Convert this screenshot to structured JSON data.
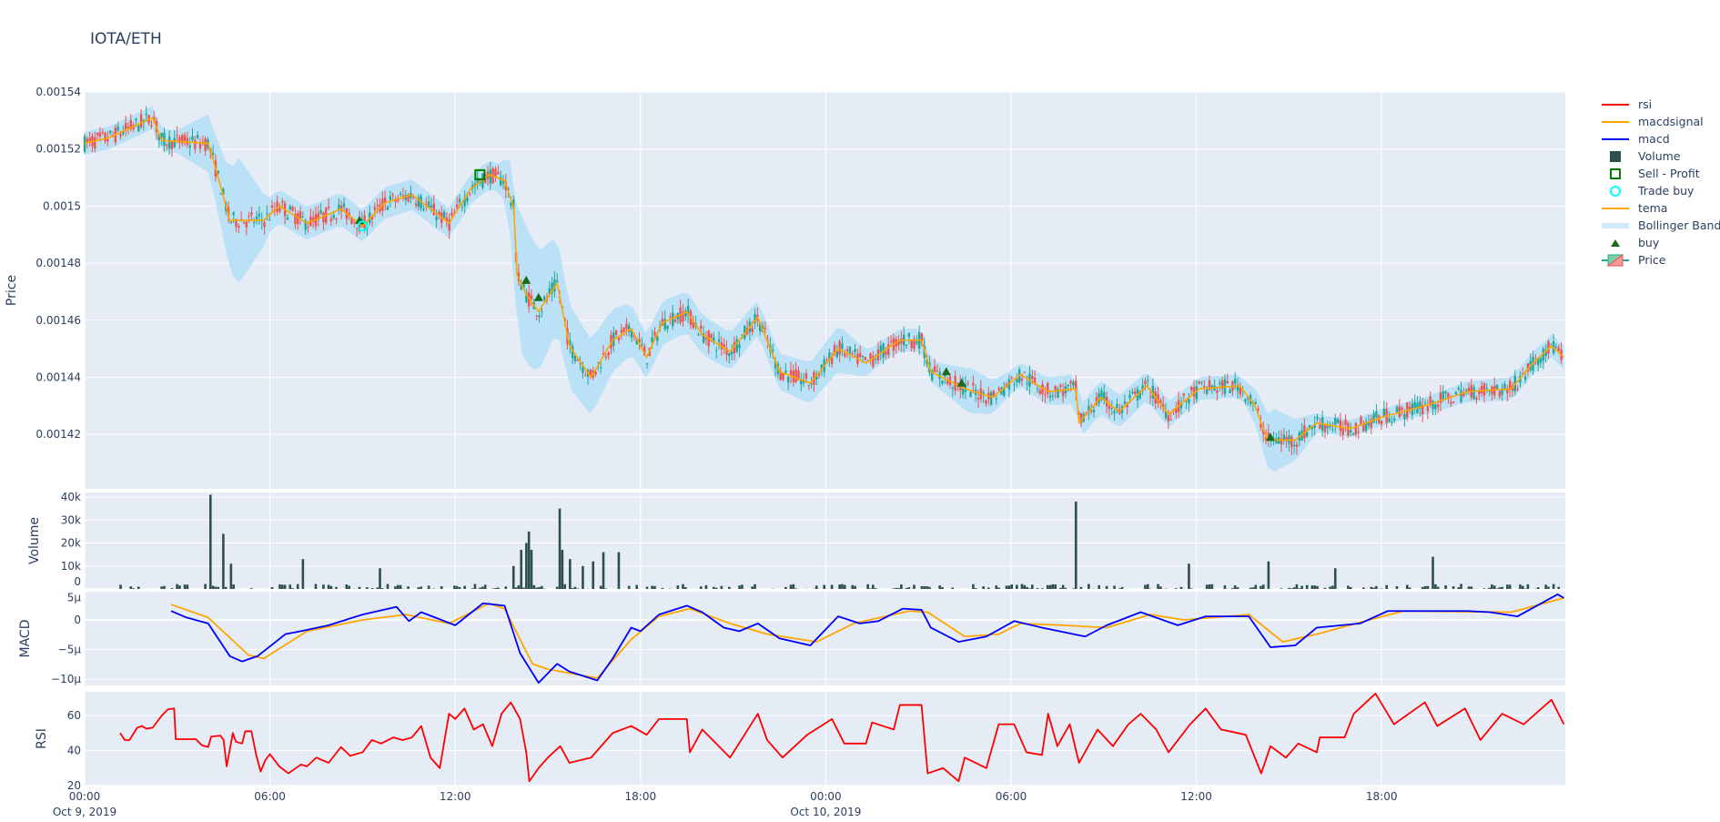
{
  "title": "IOTA/ETH",
  "colors": {
    "bg": "#E5ECF6",
    "grid": "#ffffff",
    "rsi": "#ff0000",
    "macdsignal": "#ffa500",
    "macd": "#0000ff",
    "volume": "#2f4f4f",
    "sell": "#008000",
    "tradebuy": "#00ffff",
    "tema": "#ffa500",
    "bb": "#b8e0f7",
    "buy": "#1a6b1a",
    "inc": "#26a69a",
    "dec": "#ef5350"
  },
  "legend": [
    "rsi",
    "macdsignal",
    "macd",
    "Volume",
    "Sell - Profit",
    "Trade buy",
    "tema",
    "Bollinger Band",
    "buy",
    "Price"
  ],
  "chart_data": [
    {
      "type": "candlestick",
      "ylabel": "Price",
      "ylim": [
        0.001401,
        0.00154
      ],
      "yticks": [
        "0.00154",
        "0.00152",
        "0.0015",
        "0.00148",
        "0.00146",
        "0.00144",
        "0.00142"
      ],
      "ytick_values": [
        0.00154,
        0.00152,
        0.0015,
        0.00148,
        0.00146,
        0.00144,
        0.00142
      ],
      "x_unit": "hours since Oct 9, 2019 00:00",
      "tema": [
        [
          0,
          0.001522
        ],
        [
          0.8,
          0.001524
        ],
        [
          2.2,
          0.001531
        ],
        [
          2.5,
          0.001523
        ],
        [
          4.0,
          0.001522
        ],
        [
          4.3,
          0.001511
        ],
        [
          4.7,
          0.001495
        ],
        [
          5.8,
          0.001495
        ],
        [
          6.3,
          0.0015
        ],
        [
          7.2,
          0.001494
        ],
        [
          8.3,
          0.001499
        ],
        [
          9.0,
          0.001493
        ],
        [
          9.7,
          0.001501
        ],
        [
          10.6,
          0.001504
        ],
        [
          11.8,
          0.001494
        ],
        [
          12.5,
          0.001506
        ],
        [
          13.1,
          0.001511
        ],
        [
          13.6,
          0.001509
        ],
        [
          13.9,
          0.001499
        ],
        [
          14.0,
          0.001476
        ],
        [
          14.3,
          0.001469
        ],
        [
          14.7,
          0.001463
        ],
        [
          15.3,
          0.001473
        ],
        [
          15.7,
          0.001451
        ],
        [
          16.4,
          0.00144
        ],
        [
          17.1,
          0.001453
        ],
        [
          17.7,
          0.001457
        ],
        [
          18.2,
          0.001447
        ],
        [
          18.7,
          0.001459
        ],
        [
          19.5,
          0.001463
        ],
        [
          20.0,
          0.001455
        ],
        [
          20.9,
          0.001449
        ],
        [
          21.8,
          0.001461
        ],
        [
          22.5,
          0.001442
        ],
        [
          23.5,
          0.001438
        ],
        [
          24.4,
          0.00145
        ],
        [
          25.3,
          0.001445
        ],
        [
          26.4,
          0.001453
        ],
        [
          27.1,
          0.001453
        ],
        [
          27.4,
          0.001442
        ],
        [
          28.5,
          0.001436
        ],
        [
          29.4,
          0.001433
        ],
        [
          30.3,
          0.001441
        ],
        [
          31.2,
          0.001435
        ],
        [
          32.1,
          0.001436
        ],
        [
          32.2,
          0.001424
        ],
        [
          32.9,
          0.001433
        ],
        [
          33.5,
          0.001428
        ],
        [
          34.4,
          0.001437
        ],
        [
          35.1,
          0.001427
        ],
        [
          36.1,
          0.001436
        ],
        [
          37.4,
          0.001437
        ],
        [
          37.9,
          0.00143
        ],
        [
          38.3,
          0.001418
        ],
        [
          39.2,
          0.001418
        ],
        [
          39.9,
          0.001424
        ],
        [
          41.0,
          0.001422
        ],
        [
          42.0,
          0.001426
        ],
        [
          43.4,
          0.00143
        ],
        [
          44.8,
          0.001435
        ],
        [
          46.2,
          0.001436
        ],
        [
          46.9,
          0.001445
        ],
        [
          47.5,
          0.001451
        ],
        [
          47.9,
          0.001447
        ]
      ],
      "bb_halfwidth": [
        [
          0,
          4e-06
        ],
        [
          3,
          4e-06
        ],
        [
          4.3,
          1.2e-05
        ],
        [
          5.0,
          2.2e-05
        ],
        [
          6.0,
          6e-06
        ],
        [
          13.5,
          5e-06
        ],
        [
          14.2,
          2.5e-05
        ],
        [
          15.5,
          1.5e-05
        ],
        [
          16.5,
          1.3e-05
        ],
        [
          18,
          8e-06
        ],
        [
          22,
          6e-06
        ],
        [
          24.5,
          8e-06
        ],
        [
          25.5,
          4e-06
        ],
        [
          27.5,
          4e-06
        ],
        [
          28.7,
          8e-06
        ],
        [
          30,
          4e-06
        ],
        [
          33,
          6e-06
        ],
        [
          36,
          4e-06
        ],
        [
          37.6,
          4e-06
        ],
        [
          38.5,
          1.1e-05
        ],
        [
          40,
          3e-06
        ],
        [
          43,
          3e-06
        ],
        [
          46,
          4e-06
        ],
        [
          47.9,
          4e-06
        ]
      ],
      "buy": [
        [
          8.9,
          0.001495
        ],
        [
          14.3,
          0.001474
        ],
        [
          14.7,
          0.001468
        ],
        [
          27.9,
          0.001442
        ],
        [
          28.4,
          0.001438
        ],
        [
          38.4,
          0.001419
        ]
      ],
      "trade_buy": [
        [
          9.0,
          0.001493
        ]
      ],
      "sell_profit": [
        [
          12.8,
          0.001511
        ]
      ]
    },
    {
      "type": "bar",
      "ylabel": "Volume",
      "yticks": [
        "40k",
        "30k",
        "20k",
        "10k",
        "0"
      ],
      "ytick_values": [
        40000,
        30000,
        20000,
        10000,
        0
      ],
      "ylim": [
        0,
        41000
      ],
      "spikes": [
        [
          4.1,
          41000
        ],
        [
          4.5,
          24000
        ],
        [
          4.7,
          11000
        ],
        [
          7.1,
          13000
        ],
        [
          9.6,
          9000
        ],
        [
          13.9,
          10000
        ],
        [
          14.1,
          17000
        ],
        [
          14.3,
          20000
        ],
        [
          14.4,
          25000
        ],
        [
          14.5,
          17000
        ],
        [
          15.4,
          35000
        ],
        [
          15.5,
          17000
        ],
        [
          15.7,
          13000
        ],
        [
          16.1,
          10000
        ],
        [
          16.5,
          12000
        ],
        [
          16.8,
          16000
        ],
        [
          17.3,
          16000
        ],
        [
          32.1,
          38000
        ],
        [
          35.8,
          11000
        ],
        [
          38.3,
          12000
        ],
        [
          40.5,
          9000
        ],
        [
          43.7,
          14000
        ]
      ]
    },
    {
      "type": "line",
      "ylabel": "MACD",
      "yticks": [
        "5μ",
        "0",
        "−5μ",
        "−10μ"
      ],
      "ytick_values": [
        5,
        0,
        -5,
        -10
      ],
      "y_unit": "μ",
      "macd": [
        [
          2.8,
          1.5
        ],
        [
          3.3,
          0.4
        ],
        [
          4.0,
          -0.6
        ],
        [
          4.7,
          -6.1
        ],
        [
          5.1,
          -7
        ],
        [
          5.6,
          -6.1
        ],
        [
          6.5,
          -2.4
        ],
        [
          7.0,
          -1.9
        ],
        [
          7.9,
          -0.9
        ],
        [
          9.0,
          0.9
        ],
        [
          10.1,
          2.2
        ],
        [
          10.5,
          -0.2
        ],
        [
          10.9,
          1.3
        ],
        [
          12.0,
          -0.9
        ],
        [
          12.9,
          2.8
        ],
        [
          13.6,
          2.4
        ],
        [
          14.1,
          -5.6
        ],
        [
          14.7,
          -10.6
        ],
        [
          15.3,
          -7.4
        ],
        [
          15.7,
          -8.7
        ],
        [
          16.6,
          -10.2
        ],
        [
          17.1,
          -6.5
        ],
        [
          17.7,
          -1.3
        ],
        [
          18.0,
          -1.9
        ],
        [
          18.6,
          0.9
        ],
        [
          19.5,
          2.4
        ],
        [
          20.0,
          1.3
        ],
        [
          20.7,
          -1.3
        ],
        [
          21.2,
          -1.9
        ],
        [
          21.8,
          -0.6
        ],
        [
          22.5,
          -3.1
        ],
        [
          23.5,
          -4.3
        ],
        [
          24.4,
          0.6
        ],
        [
          25.1,
          -0.6
        ],
        [
          25.7,
          -0.2
        ],
        [
          26.5,
          1.9
        ],
        [
          27.1,
          1.7
        ],
        [
          27.4,
          -1.3
        ],
        [
          28.3,
          -3.7
        ],
        [
          29.2,
          -2.8
        ],
        [
          30.1,
          -0.2
        ],
        [
          31.0,
          -1.3
        ],
        [
          32.4,
          -2.8
        ],
        [
          33.1,
          -0.9
        ],
        [
          34.2,
          1.3
        ],
        [
          35.4,
          -0.9
        ],
        [
          36.3,
          0.6
        ],
        [
          37.7,
          0.6
        ],
        [
          38.4,
          -4.6
        ],
        [
          39.2,
          -4.3
        ],
        [
          39.9,
          -1.3
        ],
        [
          41.3,
          -0.6
        ],
        [
          42.2,
          1.5
        ],
        [
          43.4,
          1.5
        ],
        [
          44.8,
          1.5
        ],
        [
          45.5,
          1.3
        ],
        [
          46.4,
          0.6
        ],
        [
          47.7,
          4.3
        ],
        [
          47.9,
          3.7
        ]
      ],
      "macdsignal": [
        [
          2.8,
          2.6
        ],
        [
          4.0,
          0.4
        ],
        [
          5.3,
          -5.9
        ],
        [
          5.8,
          -6.5
        ],
        [
          7.2,
          -1.9
        ],
        [
          9.0,
          0
        ],
        [
          10.4,
          0.9
        ],
        [
          11.8,
          -0.6
        ],
        [
          13.1,
          2.8
        ],
        [
          13.6,
          1.9
        ],
        [
          14.5,
          -7.4
        ],
        [
          15.0,
          -8.3
        ],
        [
          16.6,
          -9.8
        ],
        [
          17.7,
          -3.3
        ],
        [
          18.6,
          0.6
        ],
        [
          19.6,
          1.9
        ],
        [
          20.9,
          -0.6
        ],
        [
          22.1,
          -2.4
        ],
        [
          23.7,
          -3.7
        ],
        [
          24.9,
          -0.6
        ],
        [
          26.7,
          1.5
        ],
        [
          27.3,
          1.3
        ],
        [
          28.5,
          -2.8
        ],
        [
          29.6,
          -2.4
        ],
        [
          30.3,
          -0.6
        ],
        [
          31.7,
          -0.9
        ],
        [
          33.1,
          -1.3
        ],
        [
          34.5,
          0.9
        ],
        [
          35.6,
          0
        ],
        [
          37.7,
          0.9
        ],
        [
          38.8,
          -3.7
        ],
        [
          39.9,
          -2.4
        ],
        [
          41.6,
          0
        ],
        [
          42.7,
          1.5
        ],
        [
          46.2,
          1.3
        ],
        [
          47.9,
          3.7
        ]
      ]
    },
    {
      "type": "line",
      "ylabel": "RSI",
      "yticks": [
        "60",
        "40",
        "20"
      ],
      "ytick_values": [
        60,
        40,
        20
      ],
      "rsi": [
        [
          1.15,
          50
        ],
        [
          1.3,
          46
        ],
        [
          1.45,
          46
        ],
        [
          1.7,
          53
        ],
        [
          1.85,
          54
        ],
        [
          2.0,
          52.5
        ],
        [
          2.2,
          53
        ],
        [
          2.5,
          60
        ],
        [
          2.7,
          63.5
        ],
        [
          2.9,
          64
        ],
        [
          2.95,
          46.5
        ],
        [
          3.6,
          46.5
        ],
        [
          3.8,
          43
        ],
        [
          4.0,
          42
        ],
        [
          4.1,
          48
        ],
        [
          4.4,
          48.5
        ],
        [
          4.5,
          46
        ],
        [
          4.6,
          31
        ],
        [
          4.8,
          50
        ],
        [
          4.9,
          45
        ],
        [
          5.1,
          44
        ],
        [
          5.2,
          51
        ],
        [
          5.4,
          51
        ],
        [
          5.55,
          38
        ],
        [
          5.7,
          28
        ],
        [
          5.85,
          34.5
        ],
        [
          6.0,
          38
        ],
        [
          6.3,
          31
        ],
        [
          6.6,
          27
        ],
        [
          7.0,
          32
        ],
        [
          7.2,
          31
        ],
        [
          7.5,
          36
        ],
        [
          7.9,
          33
        ],
        [
          8.3,
          42
        ],
        [
          8.6,
          37
        ],
        [
          9.0,
          39
        ],
        [
          9.3,
          46
        ],
        [
          9.6,
          44
        ],
        [
          10.0,
          47.5
        ],
        [
          10.3,
          46
        ],
        [
          10.6,
          47.5
        ],
        [
          10.9,
          54
        ],
        [
          11.2,
          36
        ],
        [
          11.5,
          30
        ],
        [
          11.8,
          61
        ],
        [
          12.0,
          58
        ],
        [
          12.3,
          64
        ],
        [
          12.6,
          52
        ],
        [
          12.9,
          55
        ],
        [
          13.2,
          42.5
        ],
        [
          13.5,
          61
        ],
        [
          13.8,
          67.5
        ],
        [
          14.1,
          58
        ],
        [
          14.3,
          39
        ],
        [
          14.4,
          22.5
        ],
        [
          14.7,
          30
        ],
        [
          15.0,
          36
        ],
        [
          15.4,
          42.5
        ],
        [
          15.7,
          33
        ],
        [
          16.4,
          36
        ],
        [
          17.1,
          50
        ],
        [
          17.7,
          54
        ],
        [
          18.2,
          49
        ],
        [
          18.6,
          58
        ],
        [
          19.5,
          58
        ],
        [
          19.6,
          39
        ],
        [
          20.0,
          52
        ],
        [
          20.9,
          36
        ],
        [
          21.8,
          61
        ],
        [
          22.1,
          46
        ],
        [
          22.6,
          36
        ],
        [
          23.4,
          49
        ],
        [
          24.2,
          58
        ],
        [
          24.6,
          44
        ],
        [
          25.3,
          44
        ],
        [
          25.5,
          56
        ],
        [
          26.2,
          52
        ],
        [
          26.4,
          66
        ],
        [
          27.1,
          66
        ],
        [
          27.3,
          27
        ],
        [
          27.8,
          30
        ],
        [
          28.3,
          22.5
        ],
        [
          28.5,
          36
        ],
        [
          29.2,
          30
        ],
        [
          29.6,
          55
        ],
        [
          30.1,
          55
        ],
        [
          30.5,
          39
        ],
        [
          31.0,
          37.5
        ],
        [
          31.2,
          61
        ],
        [
          31.5,
          42.5
        ],
        [
          31.9,
          55
        ],
        [
          32.2,
          33
        ],
        [
          32.8,
          52
        ],
        [
          33.3,
          42.5
        ],
        [
          33.8,
          55
        ],
        [
          34.2,
          61
        ],
        [
          34.7,
          52
        ],
        [
          35.1,
          39
        ],
        [
          35.8,
          55
        ],
        [
          36.3,
          64
        ],
        [
          36.8,
          52
        ],
        [
          37.6,
          49
        ],
        [
          38.1,
          27
        ],
        [
          38.4,
          42.5
        ],
        [
          38.9,
          36
        ],
        [
          39.3,
          44
        ],
        [
          39.9,
          39
        ],
        [
          40.0,
          47.5
        ],
        [
          40.8,
          47.5
        ],
        [
          41.1,
          61
        ],
        [
          41.8,
          72.5
        ],
        [
          42.4,
          55
        ],
        [
          43.4,
          67.5
        ],
        [
          43.8,
          54
        ],
        [
          44.7,
          64
        ],
        [
          45.2,
          46
        ],
        [
          45.9,
          61
        ],
        [
          46.6,
          55
        ],
        [
          47.5,
          69
        ],
        [
          47.9,
          55
        ]
      ]
    }
  ],
  "xticks": [
    {
      "h": 0,
      "label": "00:00",
      "sub": "Oct 9, 2019"
    },
    {
      "h": 6,
      "label": "06:00",
      "sub": ""
    },
    {
      "h": 12,
      "label": "12:00",
      "sub": ""
    },
    {
      "h": 18,
      "label": "18:00",
      "sub": ""
    },
    {
      "h": 24,
      "label": "00:00",
      "sub": "Oct 10, 2019"
    },
    {
      "h": 30,
      "label": "06:00",
      "sub": ""
    },
    {
      "h": 36,
      "label": "12:00",
      "sub": ""
    },
    {
      "h": 42,
      "label": "18:00",
      "sub": ""
    }
  ]
}
